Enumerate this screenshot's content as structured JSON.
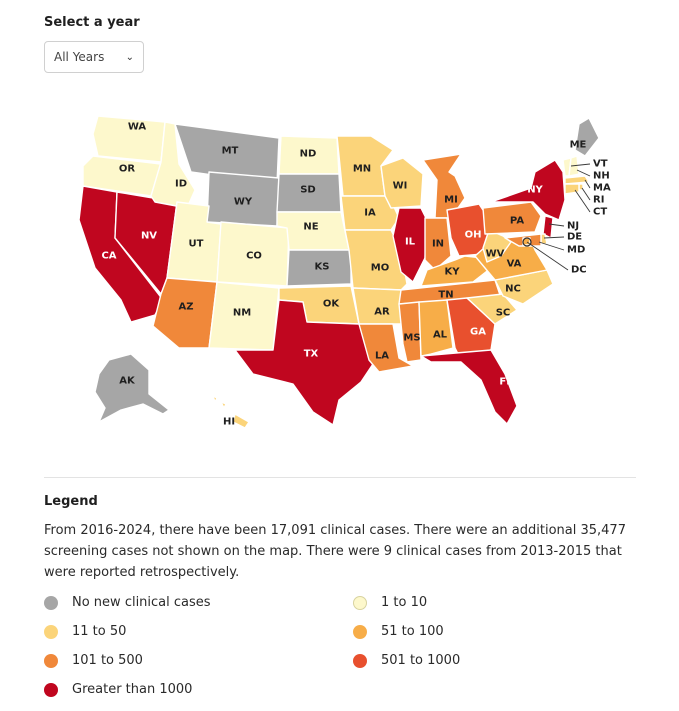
{
  "filter": {
    "label": "Select a year",
    "selected": "All Years",
    "chevron_icon": "chevron-down-icon"
  },
  "colors": {
    "none": "#a6a6a6",
    "c1_10": "#fdf8cc",
    "c11_50": "#fbd47a",
    "c51_100": "#f7ad48",
    "c101_500": "#f0883a",
    "c501_1000": "#e8502e",
    "c1000plus": "#c0061f"
  },
  "map": {
    "states": [
      {
        "abbr": "WA",
        "category": "c1_10"
      },
      {
        "abbr": "OR",
        "category": "c1_10"
      },
      {
        "abbr": "CA",
        "category": "c1000plus"
      },
      {
        "abbr": "NV",
        "category": "c1000plus"
      },
      {
        "abbr": "ID",
        "category": "c1_10"
      },
      {
        "abbr": "MT",
        "category": "none"
      },
      {
        "abbr": "WY",
        "category": "none"
      },
      {
        "abbr": "UT",
        "category": "c1_10"
      },
      {
        "abbr": "CO",
        "category": "c1_10"
      },
      {
        "abbr": "AZ",
        "category": "c101_500"
      },
      {
        "abbr": "NM",
        "category": "c1_10"
      },
      {
        "abbr": "ND",
        "category": "c1_10"
      },
      {
        "abbr": "SD",
        "category": "none"
      },
      {
        "abbr": "NE",
        "category": "c1_10"
      },
      {
        "abbr": "KS",
        "category": "none"
      },
      {
        "abbr": "OK",
        "category": "c11_50"
      },
      {
        "abbr": "TX",
        "category": "c1000plus"
      },
      {
        "abbr": "MN",
        "category": "c11_50"
      },
      {
        "abbr": "IA",
        "category": "c11_50"
      },
      {
        "abbr": "MO",
        "category": "c11_50"
      },
      {
        "abbr": "AR",
        "category": "c11_50"
      },
      {
        "abbr": "LA",
        "category": "c101_500"
      },
      {
        "abbr": "WI",
        "category": "c11_50"
      },
      {
        "abbr": "IL",
        "category": "c1000plus"
      },
      {
        "abbr": "MI",
        "category": "c101_500"
      },
      {
        "abbr": "IN",
        "category": "c101_500"
      },
      {
        "abbr": "OH",
        "category": "c501_1000"
      },
      {
        "abbr": "KY",
        "category": "c51_100"
      },
      {
        "abbr": "TN",
        "category": "c101_500"
      },
      {
        "abbr": "MS",
        "category": "c101_500"
      },
      {
        "abbr": "AL",
        "category": "c51_100"
      },
      {
        "abbr": "GA",
        "category": "c501_1000"
      },
      {
        "abbr": "FL",
        "category": "c1000plus"
      },
      {
        "abbr": "SC",
        "category": "c11_50"
      },
      {
        "abbr": "NC",
        "category": "c11_50"
      },
      {
        "abbr": "VA",
        "category": "c51_100"
      },
      {
        "abbr": "WV",
        "category": "c11_50"
      },
      {
        "abbr": "PA",
        "category": "c101_500"
      },
      {
        "abbr": "NY",
        "category": "c1000plus"
      },
      {
        "abbr": "ME",
        "category": "none"
      },
      {
        "abbr": "VT",
        "category": "c1_10"
      },
      {
        "abbr": "NH",
        "category": "c1_10"
      },
      {
        "abbr": "MA",
        "category": "c11_50"
      },
      {
        "abbr": "RI",
        "category": "c11_50"
      },
      {
        "abbr": "CT",
        "category": "c11_50"
      },
      {
        "abbr": "NJ",
        "category": "c1000plus"
      },
      {
        "abbr": "DE",
        "category": "c11_50"
      },
      {
        "abbr": "MD",
        "category": "c101_500"
      },
      {
        "abbr": "DC",
        "category": "c51_100"
      },
      {
        "abbr": "AK",
        "category": "none"
      },
      {
        "abbr": "HI",
        "category": "c11_50"
      }
    ]
  },
  "legend": {
    "title": "Legend",
    "description": "From 2016-2024, there have been 17,091 clinical cases. There were an additional 35,477 screening cases not shown on the map. There were 9 clinical cases from 2013-2015 that were reported retrospectively.",
    "items": [
      {
        "label": "No new clinical cases",
        "category": "none"
      },
      {
        "label": "1 to 10",
        "category": "c1_10"
      },
      {
        "label": "11 to 50",
        "category": "c11_50"
      },
      {
        "label": "51 to 100",
        "category": "c51_100"
      },
      {
        "label": "101 to 500",
        "category": "c101_500"
      },
      {
        "label": "501 to 1000",
        "category": "c501_1000"
      },
      {
        "label": "Greater than 1000",
        "category": "c1000plus"
      }
    ]
  }
}
